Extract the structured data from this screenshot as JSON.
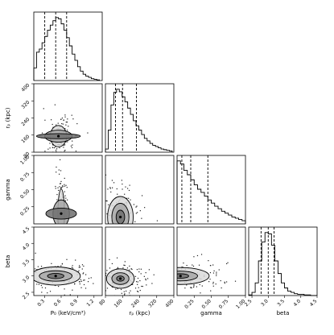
{
  "chart_data": {
    "type": "corner",
    "parameters": [
      {
        "key": "P0",
        "label": "P₀ (keV/cm³)",
        "ticks": [
          "0.3",
          "0.6",
          "0.9",
          "1.2"
        ],
        "range": [
          0.1,
          1.35
        ],
        "quantiles": [
          0.3,
          0.5,
          0.7
        ]
      },
      {
        "key": "rp",
        "label": "rₚ (kpc)",
        "ticks": [
          "80",
          "160",
          "240",
          "320",
          "400"
        ],
        "range": [
          80,
          400
        ],
        "quantiles": [
          127,
          160,
          225
        ]
      },
      {
        "key": "gamma",
        "label": "gamma",
        "ticks": [
          "0.25",
          "0.50",
          "0.75",
          "1.00"
        ],
        "range": [
          0.0,
          1.0
        ],
        "quantiles": [
          0.07,
          0.2,
          0.45
        ]
      },
      {
        "key": "beta",
        "label": "beta",
        "ticks": [
          "2.5",
          "3.0",
          "3.5",
          "4.0",
          "4.5"
        ],
        "range": [
          2.4,
          4.5
        ],
        "quantiles": [
          2.78,
          3.0,
          3.18
        ]
      }
    ],
    "histograms": [
      {
        "param": "P0",
        "bins": [
          0.1,
          0.15,
          0.2,
          0.25,
          0.3,
          0.35,
          0.4,
          0.45,
          0.5,
          0.55,
          0.6,
          0.65,
          0.7,
          0.75,
          0.8,
          0.85,
          0.9,
          0.95,
          1.0,
          1.05,
          1.1,
          1.15,
          1.2,
          1.25,
          1.3
        ],
        "counts": [
          0.2,
          0.45,
          0.5,
          0.6,
          0.7,
          0.8,
          0.88,
          0.95,
          1.0,
          0.98,
          0.9,
          0.8,
          0.68,
          0.55,
          0.42,
          0.32,
          0.22,
          0.15,
          0.1,
          0.07,
          0.05,
          0.03,
          0.02,
          0.01
        ]
      },
      {
        "param": "rp",
        "bins": [
          80,
          93,
          106,
          119,
          132,
          145,
          158,
          171,
          184,
          197,
          210,
          223,
          236,
          249,
          262,
          275,
          288,
          301,
          314,
          327,
          340,
          353,
          366,
          379,
          392
        ],
        "counts": [
          0.05,
          0.35,
          0.75,
          0.95,
          1.0,
          0.96,
          0.88,
          0.8,
          0.7,
          0.6,
          0.5,
          0.42,
          0.35,
          0.28,
          0.22,
          0.18,
          0.14,
          0.11,
          0.09,
          0.07,
          0.05,
          0.04,
          0.03,
          0.02
        ]
      },
      {
        "param": "gamma",
        "bins": [
          0.0,
          0.05,
          0.1,
          0.15,
          0.2,
          0.25,
          0.3,
          0.35,
          0.4,
          0.45,
          0.5,
          0.55,
          0.6,
          0.65,
          0.7,
          0.75,
          0.8,
          0.85,
          0.9,
          0.95,
          1.0
        ],
        "counts": [
          1.0,
          0.95,
          0.85,
          0.78,
          0.7,
          0.62,
          0.55,
          0.5,
          0.44,
          0.38,
          0.33,
          0.28,
          0.24,
          0.2,
          0.17,
          0.14,
          0.11,
          0.09,
          0.07,
          0.05
        ]
      },
      {
        "param": "beta",
        "bins": [
          2.4,
          2.5,
          2.6,
          2.7,
          2.8,
          2.9,
          3.0,
          3.1,
          3.2,
          3.3,
          3.4,
          3.5,
          3.6,
          3.7,
          3.8,
          3.9,
          4.0,
          4.1,
          4.2,
          4.3,
          4.4,
          4.5
        ],
        "counts": [
          0.01,
          0.05,
          0.2,
          0.55,
          0.85,
          1.0,
          0.98,
          0.8,
          0.55,
          0.35,
          0.2,
          0.12,
          0.07,
          0.05,
          0.03,
          0.02,
          0.02,
          0.01,
          0.01,
          0.0,
          0.0
        ]
      }
    ],
    "joint_distributions": [
      {
        "x": "P0",
        "y": "rp",
        "peak": [
          0.55,
          155
        ],
        "contours": [
          [
            0.4,
            12
          ],
          [
            0.25,
            28
          ],
          [
            0.15,
            50
          ]
        ]
      },
      {
        "x": "P0",
        "y": "gamma",
        "peak": [
          0.6,
          0.15
        ],
        "contours": [
          [
            0.28,
            0.08
          ],
          [
            0.15,
            0.2
          ],
          [
            0.06,
            0.36
          ]
        ]
      },
      {
        "x": "rp",
        "y": "gamma",
        "peak": [
          150,
          0.1
        ],
        "contours": [
          [
            20,
            0.1
          ],
          [
            40,
            0.2
          ],
          [
            60,
            0.3
          ]
        ]
      },
      {
        "x": "P0",
        "y": "beta",
        "peak": [
          0.5,
          3.0
        ],
        "contours": [
          [
            0.15,
            0.08
          ],
          [
            0.3,
            0.16
          ],
          [
            0.45,
            0.28
          ]
        ]
      },
      {
        "x": "rp",
        "y": "beta",
        "peak": [
          150,
          2.92
        ],
        "contours": [
          [
            18,
            0.08
          ],
          [
            40,
            0.18
          ],
          [
            65,
            0.3
          ]
        ]
      },
      {
        "x": "gamma",
        "y": "beta",
        "peak": [
          0.05,
          3.0
        ],
        "contours": [
          [
            0.12,
            0.07
          ],
          [
            0.25,
            0.15
          ],
          [
            0.42,
            0.26
          ]
        ]
      }
    ]
  }
}
